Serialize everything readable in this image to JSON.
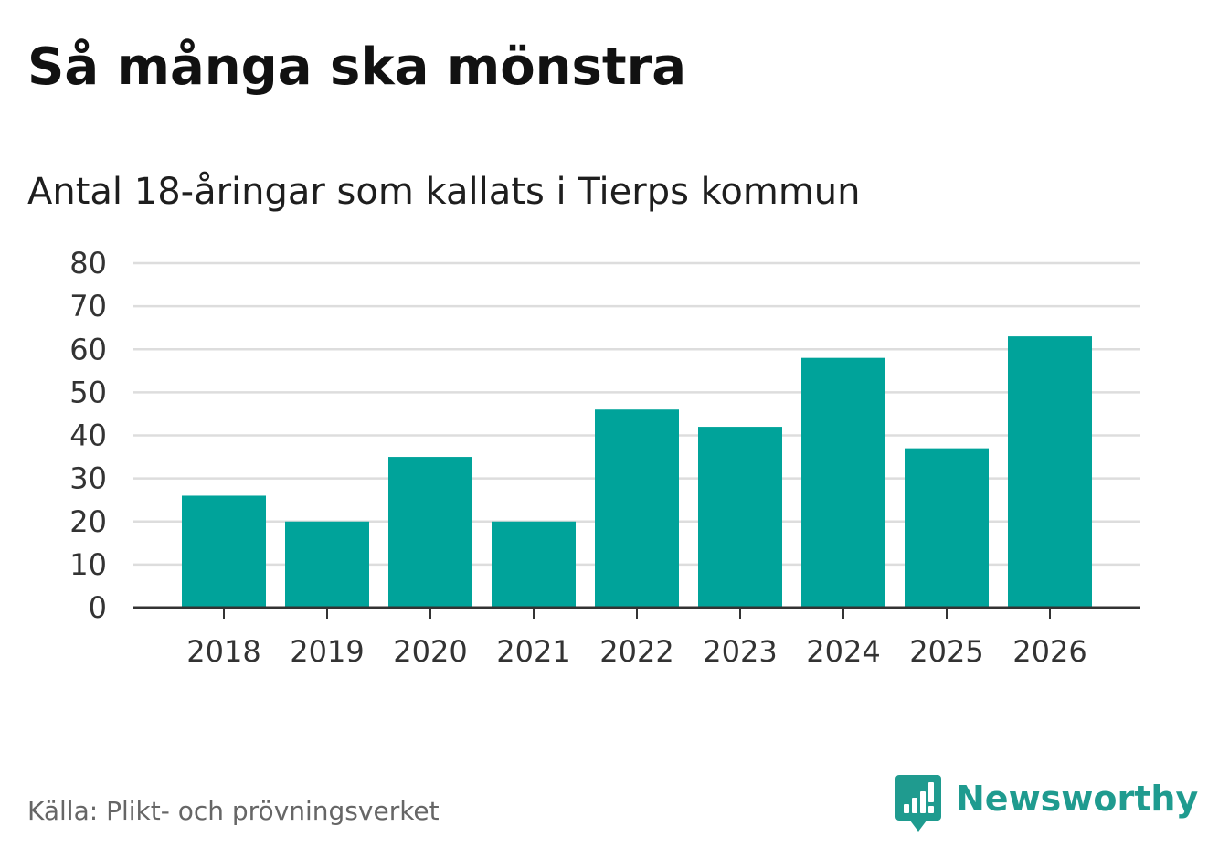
{
  "header": {
    "title": "Så många ska mönstra",
    "subtitle": "Antal 18-åringar som kallats i Tierps kommun"
  },
  "footer": {
    "source": "Källa: Plikt- och prövningsverket",
    "brand": "Newsworthy",
    "brand_icon": "newsworthy-logo-icon"
  },
  "colors": {
    "bar": "#00a39a",
    "grid": "#dddddd",
    "axis": "#333333",
    "brand": "#1f9b8f"
  },
  "chart_data": {
    "type": "bar",
    "title": "Så många ska mönstra",
    "subtitle": "Antal 18-åringar som kallats i Tierps kommun",
    "xlabel": "",
    "ylabel": "",
    "categories": [
      "2018",
      "2019",
      "2020",
      "2021",
      "2022",
      "2023",
      "2024",
      "2025",
      "2026"
    ],
    "values": [
      26,
      20,
      35,
      20,
      46,
      42,
      58,
      37,
      63
    ],
    "yticks": [
      0,
      10,
      20,
      30,
      40,
      50,
      60,
      70,
      80
    ],
    "ylim": [
      0,
      80
    ],
    "grid": true,
    "legend": "none"
  }
}
